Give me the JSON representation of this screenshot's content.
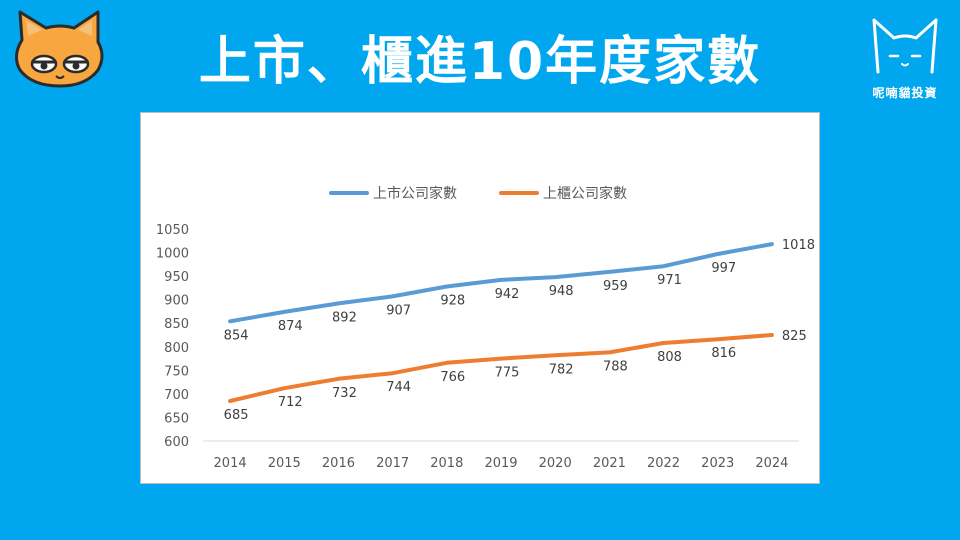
{
  "header": {
    "title": "上市、櫃進10年度家數"
  },
  "brand": {
    "name": "呢喃貓投資"
  },
  "colors": {
    "background": "#00A7EE",
    "listed": "#5B9BD5",
    "otc": "#ED7D31"
  },
  "chart_data": {
    "type": "line",
    "title": "",
    "xlabel": "",
    "ylabel": "",
    "categories": [
      "2014",
      "2015",
      "2016",
      "2017",
      "2018",
      "2019",
      "2020",
      "2021",
      "2022",
      "2023",
      "2024"
    ],
    "series": [
      {
        "name": "上市公司家數",
        "color": "#5B9BD5",
        "values": [
          854,
          874,
          892,
          907,
          928,
          942,
          948,
          959,
          971,
          997,
          1018
        ]
      },
      {
        "name": "上櫃公司家數",
        "color": "#ED7D31",
        "values": [
          685,
          712,
          732,
          744,
          766,
          775,
          782,
          788,
          808,
          816,
          825
        ]
      }
    ],
    "ylim": [
      600,
      1050
    ],
    "yticks": [
      600,
      650,
      700,
      750,
      800,
      850,
      900,
      950,
      1000,
      1050
    ],
    "grid": false,
    "legend_position": "top"
  }
}
